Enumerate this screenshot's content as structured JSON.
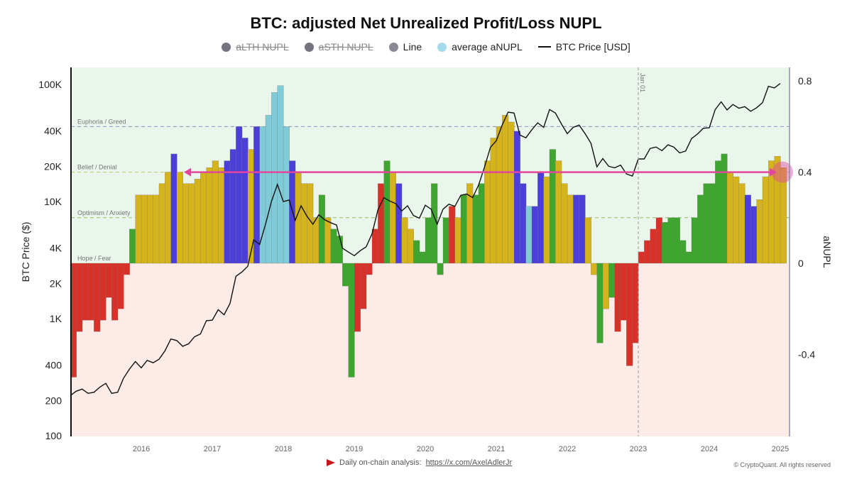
{
  "title": "BTC: adjusted Net Unrealized Profit/Loss NUPL",
  "legend": [
    {
      "label": "aLTH NUPL",
      "color": "#75737f",
      "disabled": true
    },
    {
      "label": "aSTH NUPL",
      "color": "#75737f",
      "disabled": true
    },
    {
      "label": "Line",
      "color": "#8a8893",
      "disabled": false
    },
    {
      "label": "average aNUPL",
      "color": "#a5dbe8",
      "disabled": false
    },
    {
      "label": "BTC Price [USD]",
      "color": "#111111",
      "disabled": false
    }
  ],
  "footer": {
    "text": "Daily on-chain analysis:",
    "link": "https://x.com/AxelAdlerJr",
    "copyright": "© CryptoQuant. All rights reserved"
  },
  "colors": {
    "r": "#d8312a",
    "g": "#3ea52e",
    "y": "#d4b31d",
    "b": "#4c3fd8",
    "c": "#7fcbd8",
    "bg_pos": "#eaf5eb",
    "bg_neg": "#fcebe6",
    "arrow": "#e2479c"
  },
  "chart_data": {
    "type": "bar+line",
    "title": "BTC: adjusted Net Unrealized Profit/Loss NUPL",
    "ylabel_left": "BTC Price ($)",
    "ylabel_right": "aNUPL",
    "y_left_scale": "log",
    "y_left_ticks": [
      "100K",
      "40K",
      "20K",
      "10K",
      "4K",
      "2K",
      "1K",
      "400",
      "200",
      "100"
    ],
    "y_left_tick_values": [
      100000,
      40000,
      20000,
      10000,
      4000,
      2000,
      1000,
      400,
      200,
      100
    ],
    "y_right_ticks": [
      "0.8",
      "0.4",
      "0",
      "-0.4"
    ],
    "y_right_tick_values": [
      0.8,
      0.4,
      0,
      -0.4
    ],
    "y_right_range": [
      -0.76,
      0.86
    ],
    "x_ticks": [
      "2016",
      "2017",
      "2018",
      "2019",
      "2020",
      "2021",
      "2022",
      "2023",
      "2024",
      "2025"
    ],
    "x_range": [
      "2015-01",
      "2025-02"
    ],
    "zones": [
      {
        "label": "Euphoria / Greed",
        "value": 0.6
      },
      {
        "label": "Belief / Denial",
        "value": 0.4
      },
      {
        "label": "Optimism / Anxiety",
        "value": 0.2
      },
      {
        "label": "Hope / Fear",
        "value": 0
      }
    ],
    "annotation_vline": {
      "label": "Jan 01",
      "date": "2023-01"
    },
    "annotation_arrow": {
      "value": 0.4,
      "from": "2016-08",
      "to": "2024-12"
    },
    "x_start": "2015-01",
    "anupl": [
      -0.5,
      -0.3,
      -0.25,
      -0.25,
      -0.3,
      -0.25,
      -0.15,
      -0.25,
      -0.2,
      -0.05,
      0.15,
      0.3,
      0.3,
      0.3,
      0.3,
      0.35,
      0.4,
      0.48,
      0.4,
      0.35,
      0.35,
      0.37,
      0.4,
      0.42,
      0.45,
      0.42,
      0.45,
      0.5,
      0.6,
      0.55,
      0.5,
      0.6,
      0.6,
      0.65,
      0.75,
      0.78,
      0.6,
      0.45,
      0.4,
      0.35,
      0.35,
      0.2,
      0.3,
      0.2,
      0.15,
      0.12,
      -0.1,
      -0.5,
      -0.3,
      -0.2,
      -0.05,
      0.15,
      0.35,
      0.45,
      0.4,
      0.35,
      0.2,
      0.15,
      0.1,
      0.05,
      0.2,
      0.35,
      -0.05,
      0.2,
      0.25,
      0.2,
      0.3,
      0.35,
      0.3,
      0.35,
      0.45,
      0.55,
      0.6,
      0.65,
      0.62,
      0.58,
      0.35,
      0.25,
      0.25,
      0.4,
      0.38,
      0.5,
      0.45,
      0.35,
      0.3,
      0.3,
      0.3,
      0.2,
      -0.05,
      -0.35,
      -0.2,
      -0.15,
      -0.3,
      -0.25,
      -0.45,
      -0.35,
      0.05,
      0.1,
      0.15,
      0.2,
      0.18,
      0.2,
      0.2,
      0.1,
      0.05,
      0.2,
      0.3,
      0.35,
      0.35,
      0.45,
      0.48,
      0.4,
      0.38,
      0.35,
      0.3,
      0.25,
      0.28,
      0.38,
      0.45,
      0.47,
      0.42
    ],
    "anupl_color": "rrrrrrrrrrgyyyyyybyyyyyyyybbbbybcccccbyyyygyggggrrrrrgybyyggggggrygyggyyyyybbcbbygyyybbyygygrrrrrrrrgggggggggggyyybbyyyyyyybby",
    "price": [
      220,
      240,
      250,
      230,
      235,
      260,
      280,
      230,
      235,
      310,
      370,
      430,
      380,
      440,
      420,
      450,
      530,
      670,
      650,
      580,
      610,
      700,
      740,
      960,
      970,
      1190,
      1080,
      1350,
      2300,
      2500,
      2800,
      4700,
      4300,
      6400,
      10000,
      14000,
      10000,
      10300,
      6900,
      9200,
      7500,
      6400,
      7700,
      7000,
      6600,
      6300,
      4000,
      3700,
      3450,
      3800,
      4100,
      5300,
      8500,
      10800,
      10100,
      9600,
      8300,
      9200,
      7600,
      7200,
      9300,
      8600,
      6400,
      8600,
      9500,
      9100,
      11300,
      11600,
      10800,
      13800,
      19600,
      29000,
      33000,
      45000,
      58000,
      57000,
      37000,
      35000,
      41000,
      47000,
      43000,
      61000,
      57000,
      46000,
      38000,
      43000,
      45000,
      38000,
      31500,
      19800,
      23300,
      20000,
      19400,
      20500,
      17200,
      16500,
      23100,
      23100,
      28400,
      29200,
      27200,
      30500,
      29200,
      26000,
      27000,
      34500,
      37700,
      42300,
      42600,
      61000,
      71000,
      60600,
      67500,
      62700,
      64600,
      59000,
      63300,
      70000,
      96400,
      93400,
      102000
    ]
  }
}
